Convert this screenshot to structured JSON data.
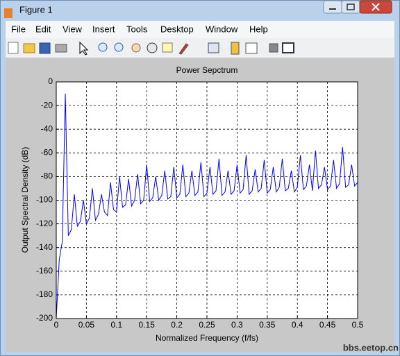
{
  "window": {
    "title": "Figure 1",
    "menu": [
      "File",
      "Edit",
      "View",
      "Insert",
      "Tools",
      "Desktop",
      "Window",
      "Help"
    ]
  },
  "watermark": "bbs.eetop.cn",
  "chart_data": {
    "type": "line",
    "title": "Power Sepctrum",
    "x_label": "Normalized Frequency (f/fs)",
    "y_label": "Output Spectral Density (dB)",
    "x": [
      0,
      0.005,
      0.01,
      0.015,
      0.02,
      0.025,
      0.03,
      0.035,
      0.04,
      0.045,
      0.05,
      0.055,
      0.06,
      0.065,
      0.07,
      0.075,
      0.08,
      0.085,
      0.09,
      0.095,
      0.1,
      0.105,
      0.11,
      0.115,
      0.12,
      0.125,
      0.13,
      0.135,
      0.14,
      0.145,
      0.15,
      0.155,
      0.16,
      0.165,
      0.17,
      0.175,
      0.18,
      0.185,
      0.19,
      0.195,
      0.2,
      0.205,
      0.21,
      0.215,
      0.22,
      0.225,
      0.23,
      0.235,
      0.24,
      0.245,
      0.25,
      0.255,
      0.26,
      0.265,
      0.27,
      0.275,
      0.28,
      0.285,
      0.29,
      0.295,
      0.3,
      0.305,
      0.31,
      0.315,
      0.32,
      0.325,
      0.33,
      0.335,
      0.34,
      0.345,
      0.35,
      0.355,
      0.36,
      0.365,
      0.37,
      0.375,
      0.38,
      0.385,
      0.39,
      0.395,
      0.4,
      0.405,
      0.41,
      0.415,
      0.42,
      0.425,
      0.43,
      0.435,
      0.44,
      0.445,
      0.45,
      0.455,
      0.46,
      0.465,
      0.47,
      0.475,
      0.48,
      0.485,
      0.49,
      0.495,
      0.5
    ],
    "values": [
      -200,
      -150,
      -135,
      -10,
      -130,
      -125,
      -95,
      -122,
      -118,
      -100,
      -120,
      -115,
      -90,
      -117,
      -112,
      -95,
      -110,
      -113,
      -85,
      -108,
      -110,
      -80,
      -106,
      -104,
      -82,
      -105,
      -100,
      -78,
      -103,
      -100,
      -70,
      -101,
      -98,
      -80,
      -100,
      -96,
      -75,
      -99,
      -97,
      -72,
      -98,
      -95,
      -70,
      -97,
      -94,
      -75,
      -96,
      -93,
      -68,
      -97,
      -94,
      -72,
      -95,
      -92,
      -65,
      -96,
      -93,
      -75,
      -95,
      -92,
      -70,
      -94,
      -91,
      -62,
      -95,
      -92,
      -74,
      -93,
      -90,
      -66,
      -94,
      -91,
      -72,
      -93,
      -89,
      -65,
      -92,
      -90,
      -75,
      -93,
      -89,
      -62,
      -91,
      -88,
      -70,
      -92,
      -58,
      -90,
      -87,
      -72,
      -91,
      -88,
      -66,
      -90,
      -86,
      -55,
      -89,
      -87,
      -70,
      -88,
      -85
    ],
    "color": "#0000ff",
    "xlim": [
      0,
      0.5
    ],
    "ylim": [
      -200,
      0
    ],
    "xticks": [
      0,
      0.05,
      0.1,
      0.15,
      0.2,
      0.25,
      0.3,
      0.35,
      0.4,
      0.45,
      0.5
    ],
    "yticks": [
      -200,
      -180,
      -160,
      -140,
      -120,
      -100,
      -80,
      -60,
      -40,
      -20,
      0
    ],
    "grid": true
  }
}
